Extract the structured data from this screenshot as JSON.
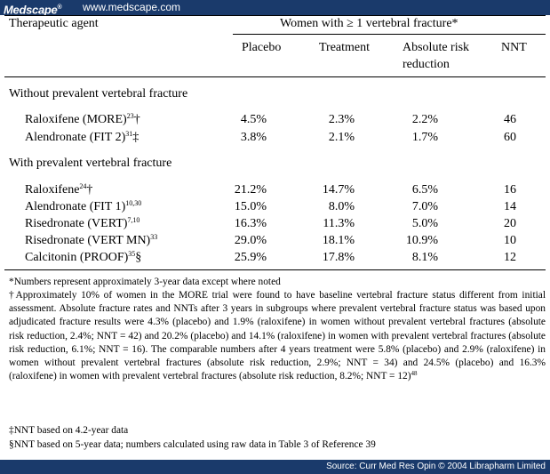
{
  "brand": {
    "logo": "Medscape",
    "reg": "®",
    "url": "www.medscape.com"
  },
  "table": {
    "col_header": "Therapeutic agent",
    "group_header": "Women with ≥ 1 vertebral fracture*",
    "columns": [
      "Placebo",
      "Treatment",
      "Absolute risk",
      "reduction",
      "NNT"
    ],
    "sections": [
      {
        "title": "Without prevalent vertebral fracture",
        "rows": [
          {
            "agent": "Raloxifene (MORE)",
            "sup": "23",
            "mark": "†",
            "placebo": "4.5%",
            "treatment": "2.3%",
            "arr": "2.2%",
            "nnt": "46"
          },
          {
            "agent": "Alendronate (FIT 2)",
            "sup": "31",
            "mark": "‡",
            "placebo": "3.8%",
            "treatment": "2.1%",
            "arr": "1.7%",
            "nnt": "60"
          }
        ]
      },
      {
        "title": "With prevalent vertebral fracture",
        "rows": [
          {
            "agent": "Raloxifene",
            "sup": "24",
            "mark": "†",
            "placebo": "21.2%",
            "treatment": "14.7%",
            "arr": "6.5%",
            "nnt": "16"
          },
          {
            "agent": "Alendronate (FIT 1)",
            "sup": "10,30",
            "mark": "",
            "placebo": "15.0%",
            "treatment": "8.0%",
            "arr": "7.0%",
            "nnt": "14"
          },
          {
            "agent": "Risedronate (VERT)",
            "sup": "7,10",
            "mark": "",
            "placebo": "16.3%",
            "treatment": "11.3%",
            "arr": "5.0%",
            "nnt": "20"
          },
          {
            "agent": "Risedronate (VERT MN)",
            "sup": "33",
            "mark": "",
            "placebo": "29.0%",
            "treatment": "18.1%",
            "arr": "10.9%",
            "nnt": "10"
          },
          {
            "agent": "Calcitonin (PROOF)",
            "sup": "35",
            "mark": "§",
            "placebo": "25.9%",
            "treatment": "17.8%",
            "arr": "8.1%",
            "nnt": "12"
          }
        ]
      }
    ]
  },
  "footnotes": {
    "star": "*Numbers represent approximately 3-year data except where noted",
    "dagger": "†Approximately 10% of women in the MORE trial were found to have baseline vertebral fracture status different from initial assessment. Absolute fracture rates and NNTs after 3 years in subgroups where prevalent vertebral fracture status was based upon adjudicated fracture results were 4.3% (placebo) and 1.9% (raloxifene) in women without prevalent vertebral fractures (absolute risk reduction, 2.4%; NNT = 42) and 20.2% (placebo) and 14.1% (raloxifene) in women with prevalent vertebral fractures (absolute risk reduction, 6.1%; NNT = 16). The comparable numbers after 4 years treatment were 5.8% (placebo) and 2.9% (raloxifene) in women without prevalent vertebral fractures (absolute risk reduction, 2.9%; NNT = 34) and 24.5% (placebo) and 16.3% (raloxifene) in women with prevalent vertebral fractures (absolute risk reduction, 8.2%; NNT = 12)",
    "dagger_sup": "48",
    "ddagger": "‡NNT based on 4.2-year data",
    "section": "§NNT based on 5-year data; numbers calculated using raw data in Table 3 of Reference 39"
  },
  "source": "Source: Curr Med Res Opin © 2004 Librapharm Limited"
}
